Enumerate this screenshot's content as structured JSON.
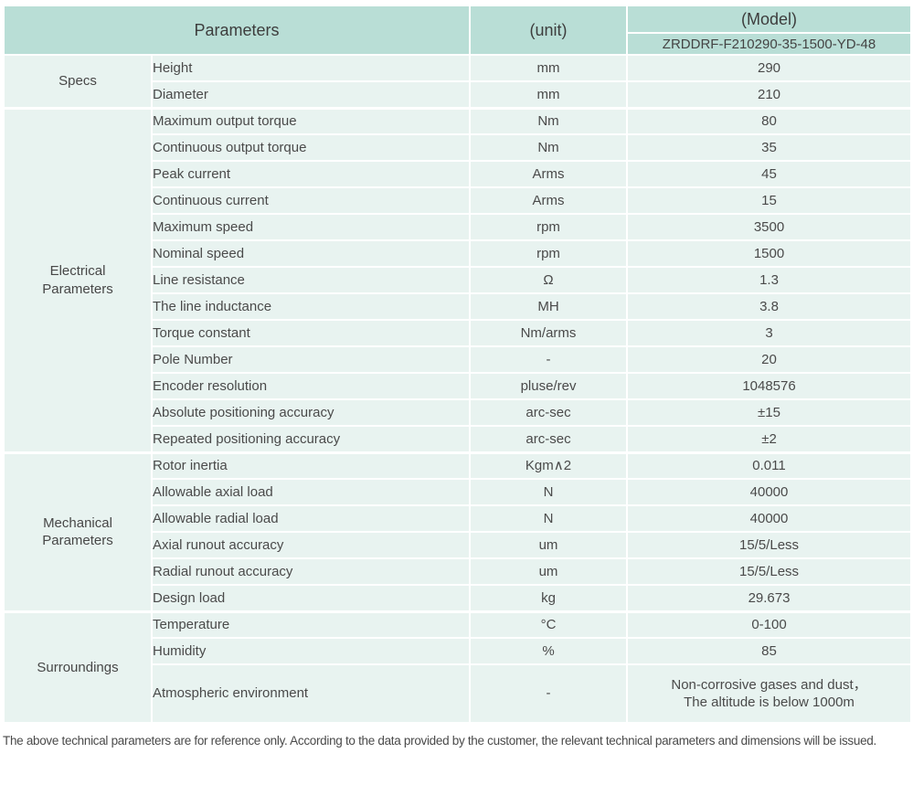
{
  "table": {
    "header": {
      "parameters": "Parameters",
      "unit": "(unit)",
      "model": "(Model)",
      "model_code": "ZRDDRF-F210290-35-1500-YD-48"
    },
    "sections": [
      {
        "group": "Specs",
        "rows": [
          {
            "name": "Height",
            "unit": "mm",
            "value": "290"
          },
          {
            "name": "Diameter",
            "unit": "mm",
            "value": "210"
          }
        ]
      },
      {
        "group": "Electrical\nParameters",
        "rows": [
          {
            "name": "Maximum output torque",
            "unit": "Nm",
            "value": "80"
          },
          {
            "name": "Continuous output torque",
            "unit": "Nm",
            "value": "35"
          },
          {
            "name": "Peak current",
            "unit": "Arms",
            "value": "45"
          },
          {
            "name": "Continuous current",
            "unit": "Arms",
            "value": "15"
          },
          {
            "name": "Maximum speed",
            "unit": "rpm",
            "value": "3500"
          },
          {
            "name": "Nominal speed",
            "unit": "rpm",
            "value": "1500"
          },
          {
            "name": "Line resistance",
            "unit": "Ω",
            "value": "1.3"
          },
          {
            "name": "The line inductance",
            "unit": "MH",
            "value": "3.8"
          },
          {
            "name": "Torque constant",
            "unit": "Nm/arms",
            "value": "3"
          },
          {
            "name": "Pole Number",
            "unit": "-",
            "value": "20"
          },
          {
            "name": "Encoder resolution",
            "unit": "pluse/rev",
            "value": "1048576"
          },
          {
            "name": "Absolute positioning accuracy",
            "unit": "arc-sec",
            "value": "±15"
          },
          {
            "name": "Repeated positioning accuracy",
            "unit": "arc-sec",
            "value": "±2"
          }
        ]
      },
      {
        "group": "Mechanical\nParameters",
        "rows": [
          {
            "name": "Rotor inertia",
            "unit": "Kgm∧2",
            "value": "0.011"
          },
          {
            "name": "Allowable axial load",
            "unit": "N",
            "value": "40000"
          },
          {
            "name": "Allowable radial load",
            "unit": "N",
            "value": "40000"
          },
          {
            "name": "Axial runout accuracy",
            "unit": "um",
            "value": "15/5/Less"
          },
          {
            "name": "Radial runout accuracy",
            "unit": "um",
            "value": "15/5/Less"
          },
          {
            "name": "Design load",
            "unit": "kg",
            "value": "29.673"
          }
        ]
      },
      {
        "group": "Surroundings",
        "rows": [
          {
            "name": "Temperature",
            "unit": "°C",
            "value": "0-100"
          },
          {
            "name": "Humidity",
            "unit": "%",
            "value": "85"
          },
          {
            "name": "Atmospheric environment",
            "unit": "-",
            "value": "Non-corrosive gases and dust，\nThe altitude is below 1000m"
          }
        ]
      }
    ]
  },
  "footer": {
    "note": "The above technical parameters are for reference only. According to the data provided by the customer, the relevant technical parameters and dimensions will be issued."
  },
  "colors": {
    "header_bg": "#b9ded6",
    "row_bg": "#e8f3f0",
    "separator": "#ffffff",
    "text": "#4a4a4a"
  }
}
